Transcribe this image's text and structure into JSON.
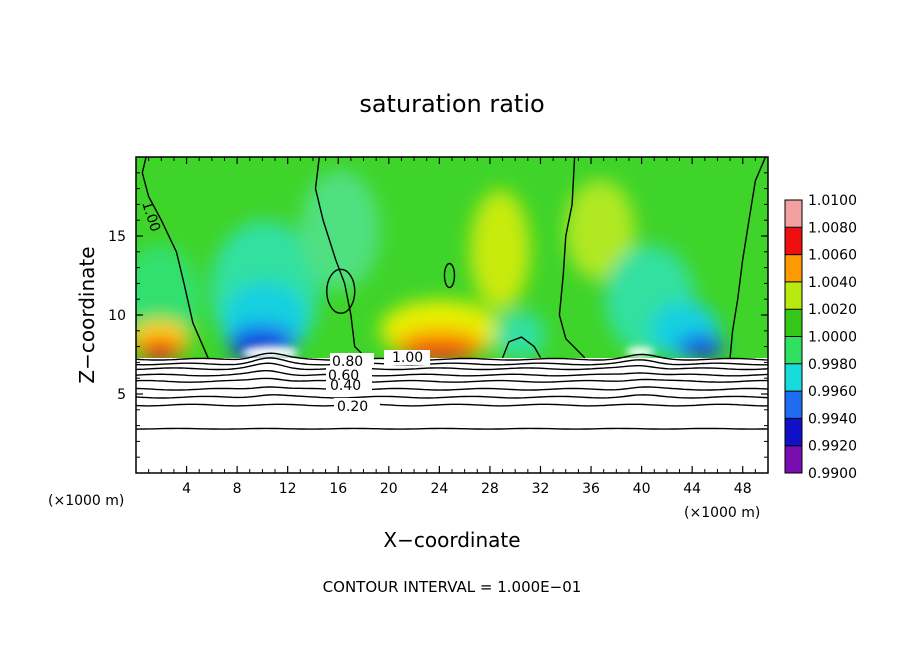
{
  "chart_data": {
    "type": "heatmap",
    "title": "saturation ratio",
    "xlabel": "X−coordinate",
    "ylabel": "Z−coordinate",
    "x_unit_left": "(×1000 m)",
    "x_unit_right": "(×1000 m)",
    "xlim": [
      0,
      50
    ],
    "ylim": [
      0,
      20
    ],
    "x_ticks": [
      "4",
      "8",
      "12",
      "16",
      "20",
      "24",
      "28",
      "32",
      "36",
      "40",
      "44",
      "48"
    ],
    "y_ticks": [
      "5",
      "10",
      "15"
    ],
    "colorbar": {
      "min": 0.99,
      "max": 1.01,
      "labels": [
        "1.0100",
        "1.0080",
        "1.0060",
        "1.0040",
        "1.0020",
        "1.0000",
        "0.9980",
        "0.9960",
        "0.9940",
        "0.9920",
        "0.9900"
      ]
    },
    "contour_labels": [
      "1.00",
      "0.80",
      "0.60",
      "0.40",
      "0.20",
      "1.00"
    ],
    "contour_line_levels_z": [
      7.2,
      6.9,
      6.6,
      6.2,
      5.8,
      5.3,
      4.8,
      4.3,
      2.8
    ],
    "note": "CONTOUR INTERVAL = 1.000E−01"
  },
  "colors": {
    "violet": "#7a0cb0",
    "blue_dark": "#1010c8",
    "blue": "#1f6cf0",
    "cyan": "#18dcdc",
    "green_light": "#30e060",
    "green": "#34c818",
    "yellow": "#e8f000",
    "orange": "#ff9a00",
    "red": "#ee1010",
    "pink": "#f5a0a0"
  }
}
